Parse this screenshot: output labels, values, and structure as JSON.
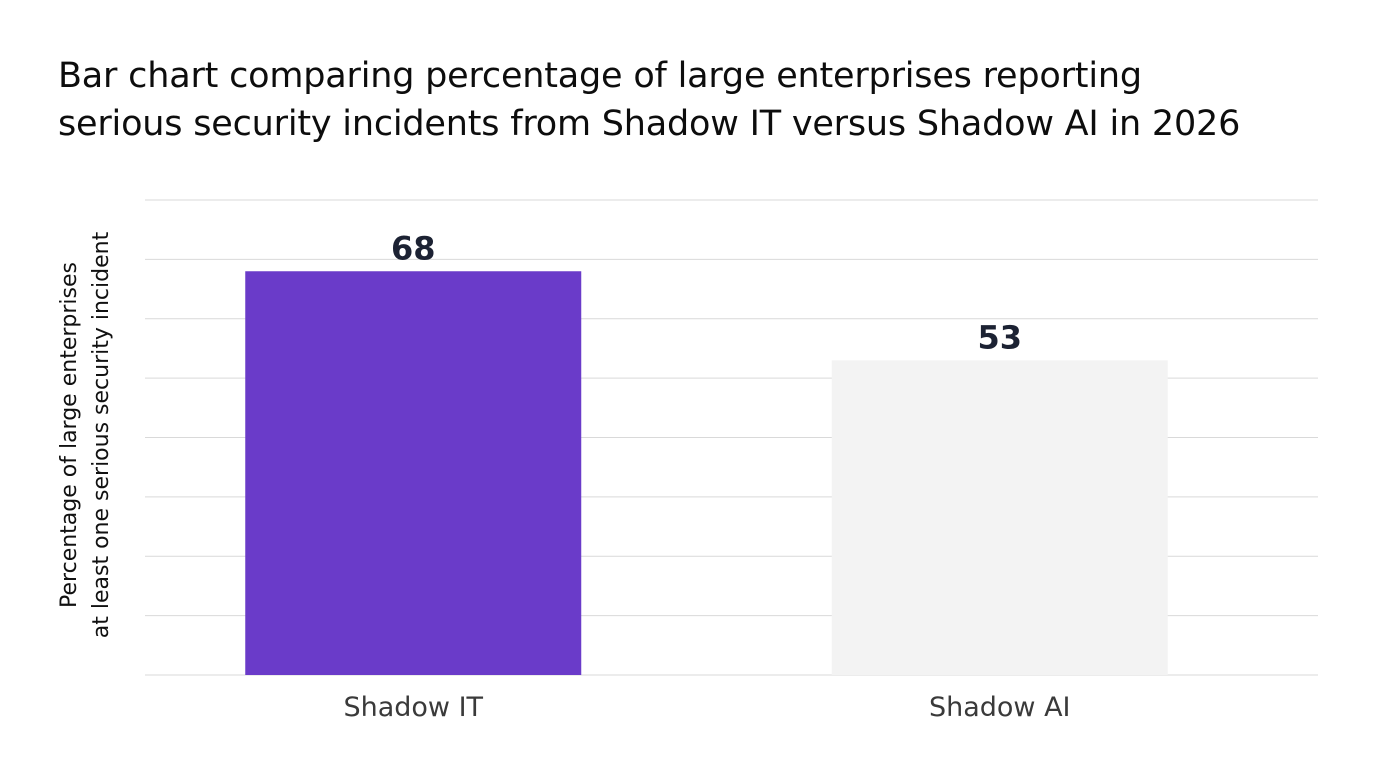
{
  "chart_data": {
    "type": "bar",
    "title_lines": [
      "Bar chart comparing percentage of large enterprises reporting",
      "serious security incidents from Shadow IT versus Shadow AI in 2026"
    ],
    "ylabel_lines": [
      "Percentage of large enterprises",
      "at least one serious security incident"
    ],
    "xlabel": "",
    "categories": [
      "Shadow IT",
      "Shadow AI"
    ],
    "values": [
      68,
      53
    ],
    "value_labels": [
      "68",
      "53"
    ],
    "ylim": [
      0,
      80
    ],
    "grid": true,
    "legend": "none",
    "colors": {
      "bars": [
        "#6a3bc9",
        "#f3f3f3"
      ],
      "grid": "#d9d9d9",
      "value_text": "#1c2233"
    }
  }
}
